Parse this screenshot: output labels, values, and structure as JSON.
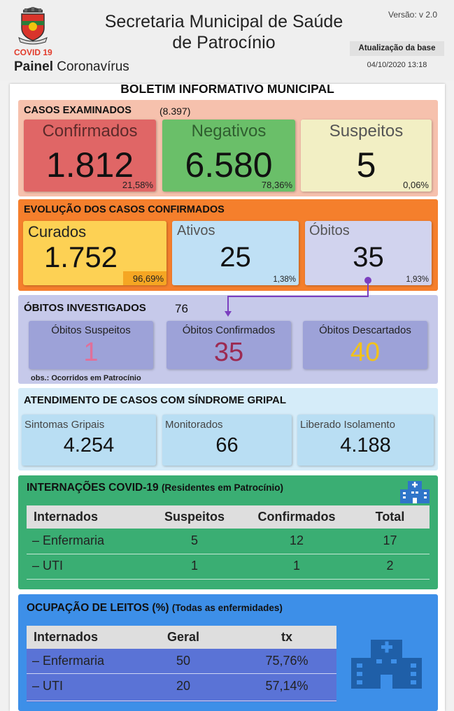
{
  "header": {
    "title_line1": "Secretaria Municipal de Saúde",
    "title_line2": "de Patrocínio",
    "version": "Versão: v 2.0",
    "covid_label": "COVID 19",
    "painel_bold": "Painel",
    "painel_rest": "Coronavírus",
    "update_label": "Atualização da base",
    "update_date": "04/10/2020 13:18"
  },
  "boletim_title": "BOLETIM INFORMATIVO MUNICIPAL",
  "casos": {
    "title": "CASOS EXAMINADOS",
    "total": "(8.397)",
    "cards": [
      {
        "label": "Confirmados",
        "value": "1.812",
        "pct": "21,58%",
        "color": "#e06666"
      },
      {
        "label": "Negativos",
        "value": "6.580",
        "pct": "78,36%",
        "color": "#6abf69"
      },
      {
        "label": "Suspeitos",
        "value": "5",
        "pct": "0,06%",
        "color": "#f2efc4"
      }
    ]
  },
  "evolucao": {
    "title": "EVOLUÇÃO DOS CASOS CONFIRMADOS",
    "cards": [
      {
        "label": "Curados",
        "value": "1.752",
        "pct": "96,69%"
      },
      {
        "label": "Ativos",
        "value": "25",
        "pct": "1,38%"
      },
      {
        "label": "Óbitos",
        "value": "35",
        "pct": "1,93%"
      }
    ]
  },
  "obitos": {
    "title": "ÓBITOS INVESTIGADOS",
    "total": "76",
    "cards": [
      {
        "label": "Óbitos Suspeitos",
        "value": "1",
        "color": "#e0709a"
      },
      {
        "label": "Óbitos Confirmados",
        "value": "35",
        "color": "#9c2a52"
      },
      {
        "label": "Óbitos Descartados",
        "value": "40",
        "color": "#f2c21b"
      }
    ],
    "obs": "obs.: Ocorridos em Patrocínio"
  },
  "sindrome": {
    "title": "ATENDIMENTO DE CASOS COM SÍNDROME GRIPAL",
    "cards": [
      {
        "label": "Sintomas Gripais",
        "value": "4.254"
      },
      {
        "label": "Monitorados",
        "value": "66"
      },
      {
        "label": "Liberado Isolamento",
        "value": "4.188"
      }
    ]
  },
  "internacoes": {
    "title": "INTERNAÇÕES COVID-19",
    "subtitle": "(Residentes em Patrocínio)",
    "headers": [
      "Internados",
      "Suspeitos",
      "Confirmados",
      "Total"
    ],
    "rows": [
      [
        "– Enfermaria",
        "5",
        "12",
        "17"
      ],
      [
        "– UTI",
        "1",
        "1",
        "2"
      ]
    ]
  },
  "ocupacao": {
    "title": "OCUPAÇÃO DE LEITOS (%)",
    "subtitle": "(Todas as enfermidades)",
    "headers": [
      "Internados",
      "Geral",
      "tx"
    ],
    "rows": [
      [
        "– Enfermaria",
        "50",
        "75,76%"
      ],
      [
        "– UTI",
        "20",
        "57,14%"
      ]
    ]
  }
}
